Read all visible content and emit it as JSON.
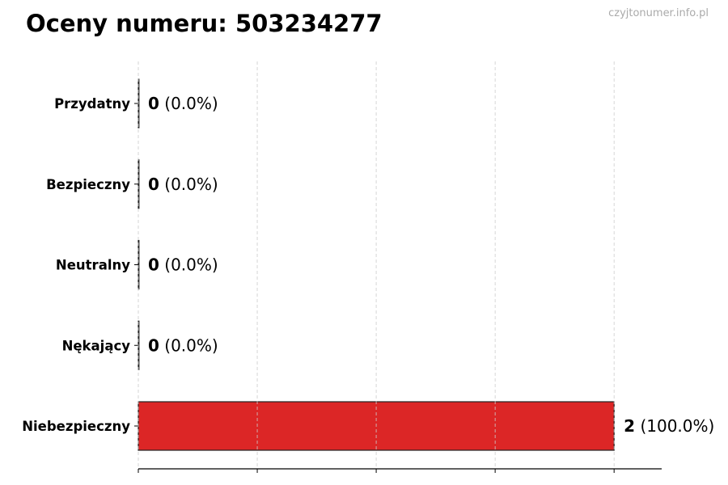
{
  "title": "Oceny numeru: 503234277",
  "watermark": "czyjtonumer.info.pl",
  "chart_data": {
    "type": "bar",
    "orientation": "horizontal",
    "title": "Oceny numeru: 503234277",
    "xlabel": "",
    "ylabel": "",
    "categories": [
      "Przydatny",
      "Bezpieczny",
      "Neutralny",
      "Nękający",
      "Niebezpieczny"
    ],
    "values": [
      0,
      0,
      0,
      0,
      2
    ],
    "labels": [
      "(0.0%)",
      "(0.0%)",
      "(0.0%)",
      "(0.0%)",
      "(100.0%)"
    ],
    "colors": [
      "#2ca02c",
      "#1f77b4",
      "#7f7f7f",
      "#ff7f0e",
      "#dc2626"
    ],
    "xlim": [
      0,
      2.2
    ],
    "xticks": [
      0,
      0.5,
      1,
      1.5,
      2
    ],
    "xtick_labels_visible": false,
    "grid": "x-dashed"
  }
}
